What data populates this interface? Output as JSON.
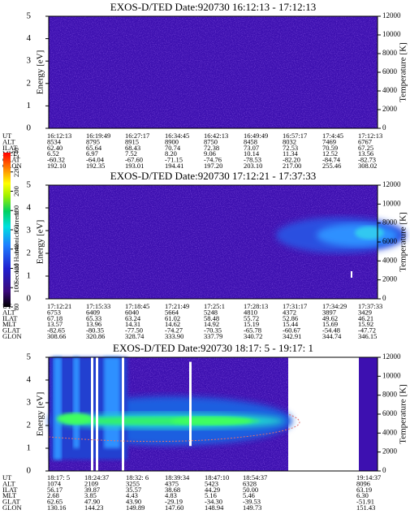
{
  "chart_data": [
    {
      "type": "spectrogram",
      "title": "EXOS-D/TED   Date:920730   16:12:13 - 17:12:13",
      "ylabel": "Energy [eV]",
      "ylim": [
        0,
        5
      ],
      "yticks": [
        0,
        1,
        2,
        3,
        4,
        5
      ],
      "y2label": "Temperature [K]",
      "y2lim": [
        0,
        12000
      ],
      "y2ticks": [
        0,
        2000,
        4000,
        6000,
        8000,
        10000,
        12000
      ],
      "orbit": [
        {
          "label": "UT",
          "values": [
            "16:12:13",
            "16:19:49",
            "16:27:17",
            "16:34:45",
            "16:42:13",
            "16:49:49",
            "16:57:17",
            "17:4:45",
            "17:12:13"
          ]
        },
        {
          "label": "ALT",
          "values": [
            "8534",
            "8795",
            "8915",
            "8900",
            "8750",
            "8458",
            "8032",
            "7469",
            "6767"
          ]
        },
        {
          "label": "ILAT",
          "values": [
            "62.40",
            "65.64",
            "68.43",
            "70.74",
            "72.38",
            "73.07",
            "72.53",
            "70.59",
            "67.25"
          ]
        },
        {
          "label": "MLT",
          "values": [
            "6.52",
            "6.97",
            "7.52",
            "8.20",
            "9.06",
            "10.14",
            "11.34",
            "12.52",
            "13.56"
          ]
        },
        {
          "label": "GLAT",
          "values": [
            "-60.32",
            "-64.04",
            "-67.60",
            "-71.15",
            "-74.76",
            "-78.53",
            "-82.20",
            "-84.74",
            "-82.73"
          ]
        },
        {
          "label": "GLON",
          "values": [
            "192.10",
            "192.35",
            "193.01",
            "194.41",
            "197.20",
            "203.10",
            "217.00",
            "255.46",
            "308.02"
          ]
        }
      ]
    },
    {
      "type": "spectrogram",
      "title": "EXOS-D/TED   Date:920730   17:12:21 - 17:37:33",
      "ylabel": "Energy [eV]",
      "ylim": [
        0,
        5
      ],
      "yticks": [
        0,
        1,
        2,
        3,
        4,
        5
      ],
      "y2label": "Temperature [K]",
      "y2lim": [
        0,
        12000
      ],
      "y2ticks": [
        0,
        2000,
        4000,
        6000,
        8000,
        10000,
        12000
      ],
      "orbit": [
        {
          "label": "UT",
          "values": [
            "17:12:21",
            "17:15:33",
            "17:18:45",
            "17:21:49",
            "17:25:1",
            "17:28:13",
            "17:31:17",
            "17:34:29",
            "17:37:33"
          ]
        },
        {
          "label": "ALT",
          "values": [
            "6753",
            "6409",
            "6040",
            "5664",
            "5248",
            "4810",
            "4372",
            "3897",
            "3429"
          ]
        },
        {
          "label": "ILAT",
          "values": [
            "67.18",
            "65.33",
            "63.24",
            "61.02",
            "58.48",
            "55.72",
            "52.86",
            "49.62",
            "46.21"
          ]
        },
        {
          "label": "MLT",
          "values": [
            "13.57",
            "13.96",
            "14.31",
            "14.62",
            "14.92",
            "15.19",
            "15.44",
            "15.69",
            "15.92"
          ]
        },
        {
          "label": "GLAT",
          "values": [
            "-82.65",
            "-80.35",
            "-77.50",
            "-74.27",
            "-70.35",
            "-65.78",
            "-60.67",
            "-54.48",
            "-47.72"
          ]
        },
        {
          "label": "GLON",
          "values": [
            "308.66",
            "320.86",
            "328.74",
            "333.90",
            "337.79",
            "340.72",
            "342.91",
            "344.74",
            "346.15"
          ]
        }
      ]
    },
    {
      "type": "spectrogram",
      "title": "EXOS-D/TED   Date:920730   18:17: 5 - 19:17: 1",
      "ylabel": "Energy [eV]",
      "ylim": [
        0,
        5
      ],
      "yticks": [
        0,
        1,
        2,
        3,
        4,
        5
      ],
      "y2label": "Temperature [K]",
      "y2lim": [
        0,
        12000
      ],
      "y2ticks": [
        0,
        2000,
        4000,
        6000,
        8000,
        10000,
        12000
      ],
      "orbit": [
        {
          "label": "UT",
          "values": [
            "18:17: 5",
            "18:24:37",
            "18:32: 6",
            "18:39:34",
            "18:47:10",
            "18:54:37",
            "19:14:37"
          ]
        },
        {
          "label": "ALT",
          "values": [
            "1074",
            "2109",
            "3255",
            "4375",
            "5423",
            "6328",
            "8096"
          ]
        },
        {
          "label": "ILAT",
          "values": [
            "56.17",
            "39.87",
            "35.57",
            "38.68",
            "44.29",
            "50.00",
            "63.19"
          ]
        },
        {
          "label": "MLT",
          "values": [
            "2.68",
            "3.85",
            "4.43",
            "4.83",
            "5.16",
            "5.46",
            "6.30"
          ]
        },
        {
          "label": "GLAT",
          "values": [
            "62.65",
            "47.90",
            "43.90",
            "-29.19",
            "-34.30",
            "-39.53",
            "-51.91"
          ]
        },
        {
          "label": "GLON",
          "values": [
            "130.16",
            "144.23",
            "149.89",
            "147.60",
            "148.94",
            "149.73",
            "151.43"
          ]
        }
      ]
    }
  ],
  "colorbar": {
    "label": "Second Harmonic Current",
    "lim": [
      80,
      240
    ],
    "ticks": [
      80,
      100,
      120,
      140,
      160,
      180,
      200,
      220,
      240
    ]
  }
}
